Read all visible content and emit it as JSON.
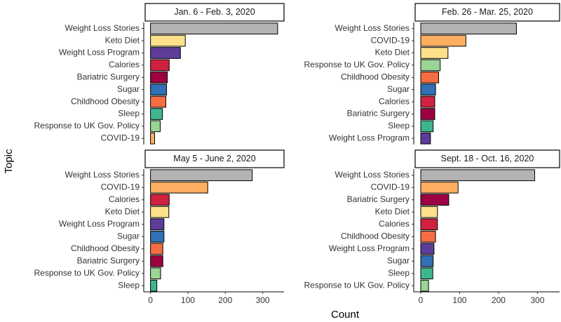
{
  "x_label": "Count",
  "y_label": "Topic",
  "chart_data": [
    {
      "type": "bar",
      "orientation": "horizontal",
      "title": "Jan. 6 - Feb. 3, 2020",
      "categories": [
        "Weight Loss Stories",
        "Keto Diet",
        "Weight Loss Program",
        "Calories",
        "Bariatric Surgery",
        "Sugar",
        "Childhood Obesity",
        "Sleep",
        "Response to UK Gov. Policy",
        "COVID-19"
      ],
      "values": [
        340,
        93,
        80,
        50,
        45,
        43,
        41,
        32,
        26,
        11
      ],
      "colors": [
        "#b3b3b3",
        "#fee08b",
        "#5e3c99",
        "#d0213f",
        "#9e0142",
        "#3070b5",
        "#f46d43",
        "#3fb58f",
        "#99d594",
        "#fdae61"
      ],
      "xlim": [
        -18,
        357
      ]
    },
    {
      "type": "bar",
      "orientation": "horizontal",
      "title": "Feb. 26 - Mar. 25, 2020",
      "categories": [
        "Weight Loss Stories",
        "COVID-19",
        "Keto Diet",
        "Response to UK Gov. Policy",
        "Childhood Obesity",
        "Sugar",
        "Calories",
        "Bariatric Surgery",
        "Sleep",
        "Weight Loss Program"
      ],
      "values": [
        246,
        116,
        70,
        50,
        46,
        38,
        36,
        36,
        32,
        25
      ],
      "colors": [
        "#b3b3b3",
        "#fdae61",
        "#fee08b",
        "#99d594",
        "#f46d43",
        "#3070b5",
        "#d0213f",
        "#9e0142",
        "#3fb58f",
        "#5e3c99"
      ],
      "xlim": [
        -18,
        357
      ]
    },
    {
      "type": "bar",
      "orientation": "horizontal",
      "title": "May 5 - June 2, 2020",
      "categories": [
        "Weight Loss Stories",
        "COVID-19",
        "Calories",
        "Keto Diet",
        "Weight Loss Program",
        "Sugar",
        "Childhood Obesity",
        "Bariatric Surgery",
        "Response to UK Gov. Policy",
        "Sleep"
      ],
      "values": [
        272,
        153,
        50,
        49,
        36,
        36,
        33,
        33,
        27,
        17
      ],
      "colors": [
        "#b3b3b3",
        "#fdae61",
        "#d0213f",
        "#fee08b",
        "#5e3c99",
        "#3070b5",
        "#f46d43",
        "#9e0142",
        "#99d594",
        "#3fb58f"
      ],
      "xlim": [
        -18,
        357
      ],
      "xticks": [
        0,
        100,
        200,
        300
      ]
    },
    {
      "type": "bar",
      "orientation": "horizontal",
      "title": "Sept. 18 - Oct. 16, 2020",
      "categories": [
        "Weight Loss Stories",
        "COVID-19",
        "Bariatric Surgery",
        "Keto Diet",
        "Calories",
        "Childhood Obesity",
        "Weight Loss Program",
        "Sugar",
        "Sleep",
        "Response to UK Gov. Policy"
      ],
      "values": [
        293,
        96,
        72,
        43,
        43,
        38,
        34,
        32,
        31,
        20
      ],
      "colors": [
        "#b3b3b3",
        "#fdae61",
        "#9e0142",
        "#fee08b",
        "#d0213f",
        "#f46d43",
        "#5e3c99",
        "#3070b5",
        "#3fb58f",
        "#99d594"
      ],
      "xlim": [
        -18,
        357
      ],
      "xticks": [
        0,
        100,
        200,
        300
      ]
    }
  ]
}
